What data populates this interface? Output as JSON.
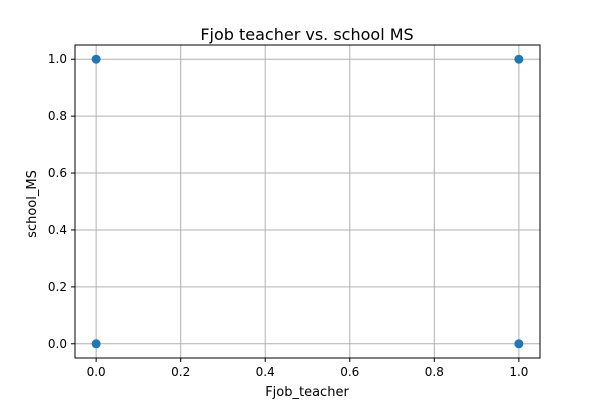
{
  "chart_data": {
    "type": "scatter",
    "title": "Fjob teacher vs. school MS",
    "xlabel": "Fjob_teacher",
    "ylabel": "school_MS",
    "xlim": [
      -0.05,
      1.05
    ],
    "ylim": [
      -0.05,
      1.05
    ],
    "xticks": [
      0.0,
      0.2,
      0.4,
      0.6,
      0.8,
      1.0
    ],
    "yticks": [
      0.0,
      0.2,
      0.4,
      0.6,
      0.8,
      1.0
    ],
    "xtick_labels": [
      "0.0",
      "0.2",
      "0.4",
      "0.6",
      "0.8",
      "1.0"
    ],
    "ytick_labels": [
      "0.0",
      "0.2",
      "0.4",
      "0.6",
      "0.8",
      "1.0"
    ],
    "grid": true,
    "legend": "none",
    "marker_color": "#1f77b4",
    "points": [
      {
        "x": 0,
        "y": 0
      },
      {
        "x": 0,
        "y": 1
      },
      {
        "x": 1,
        "y": 0
      },
      {
        "x": 1,
        "y": 1
      }
    ]
  }
}
